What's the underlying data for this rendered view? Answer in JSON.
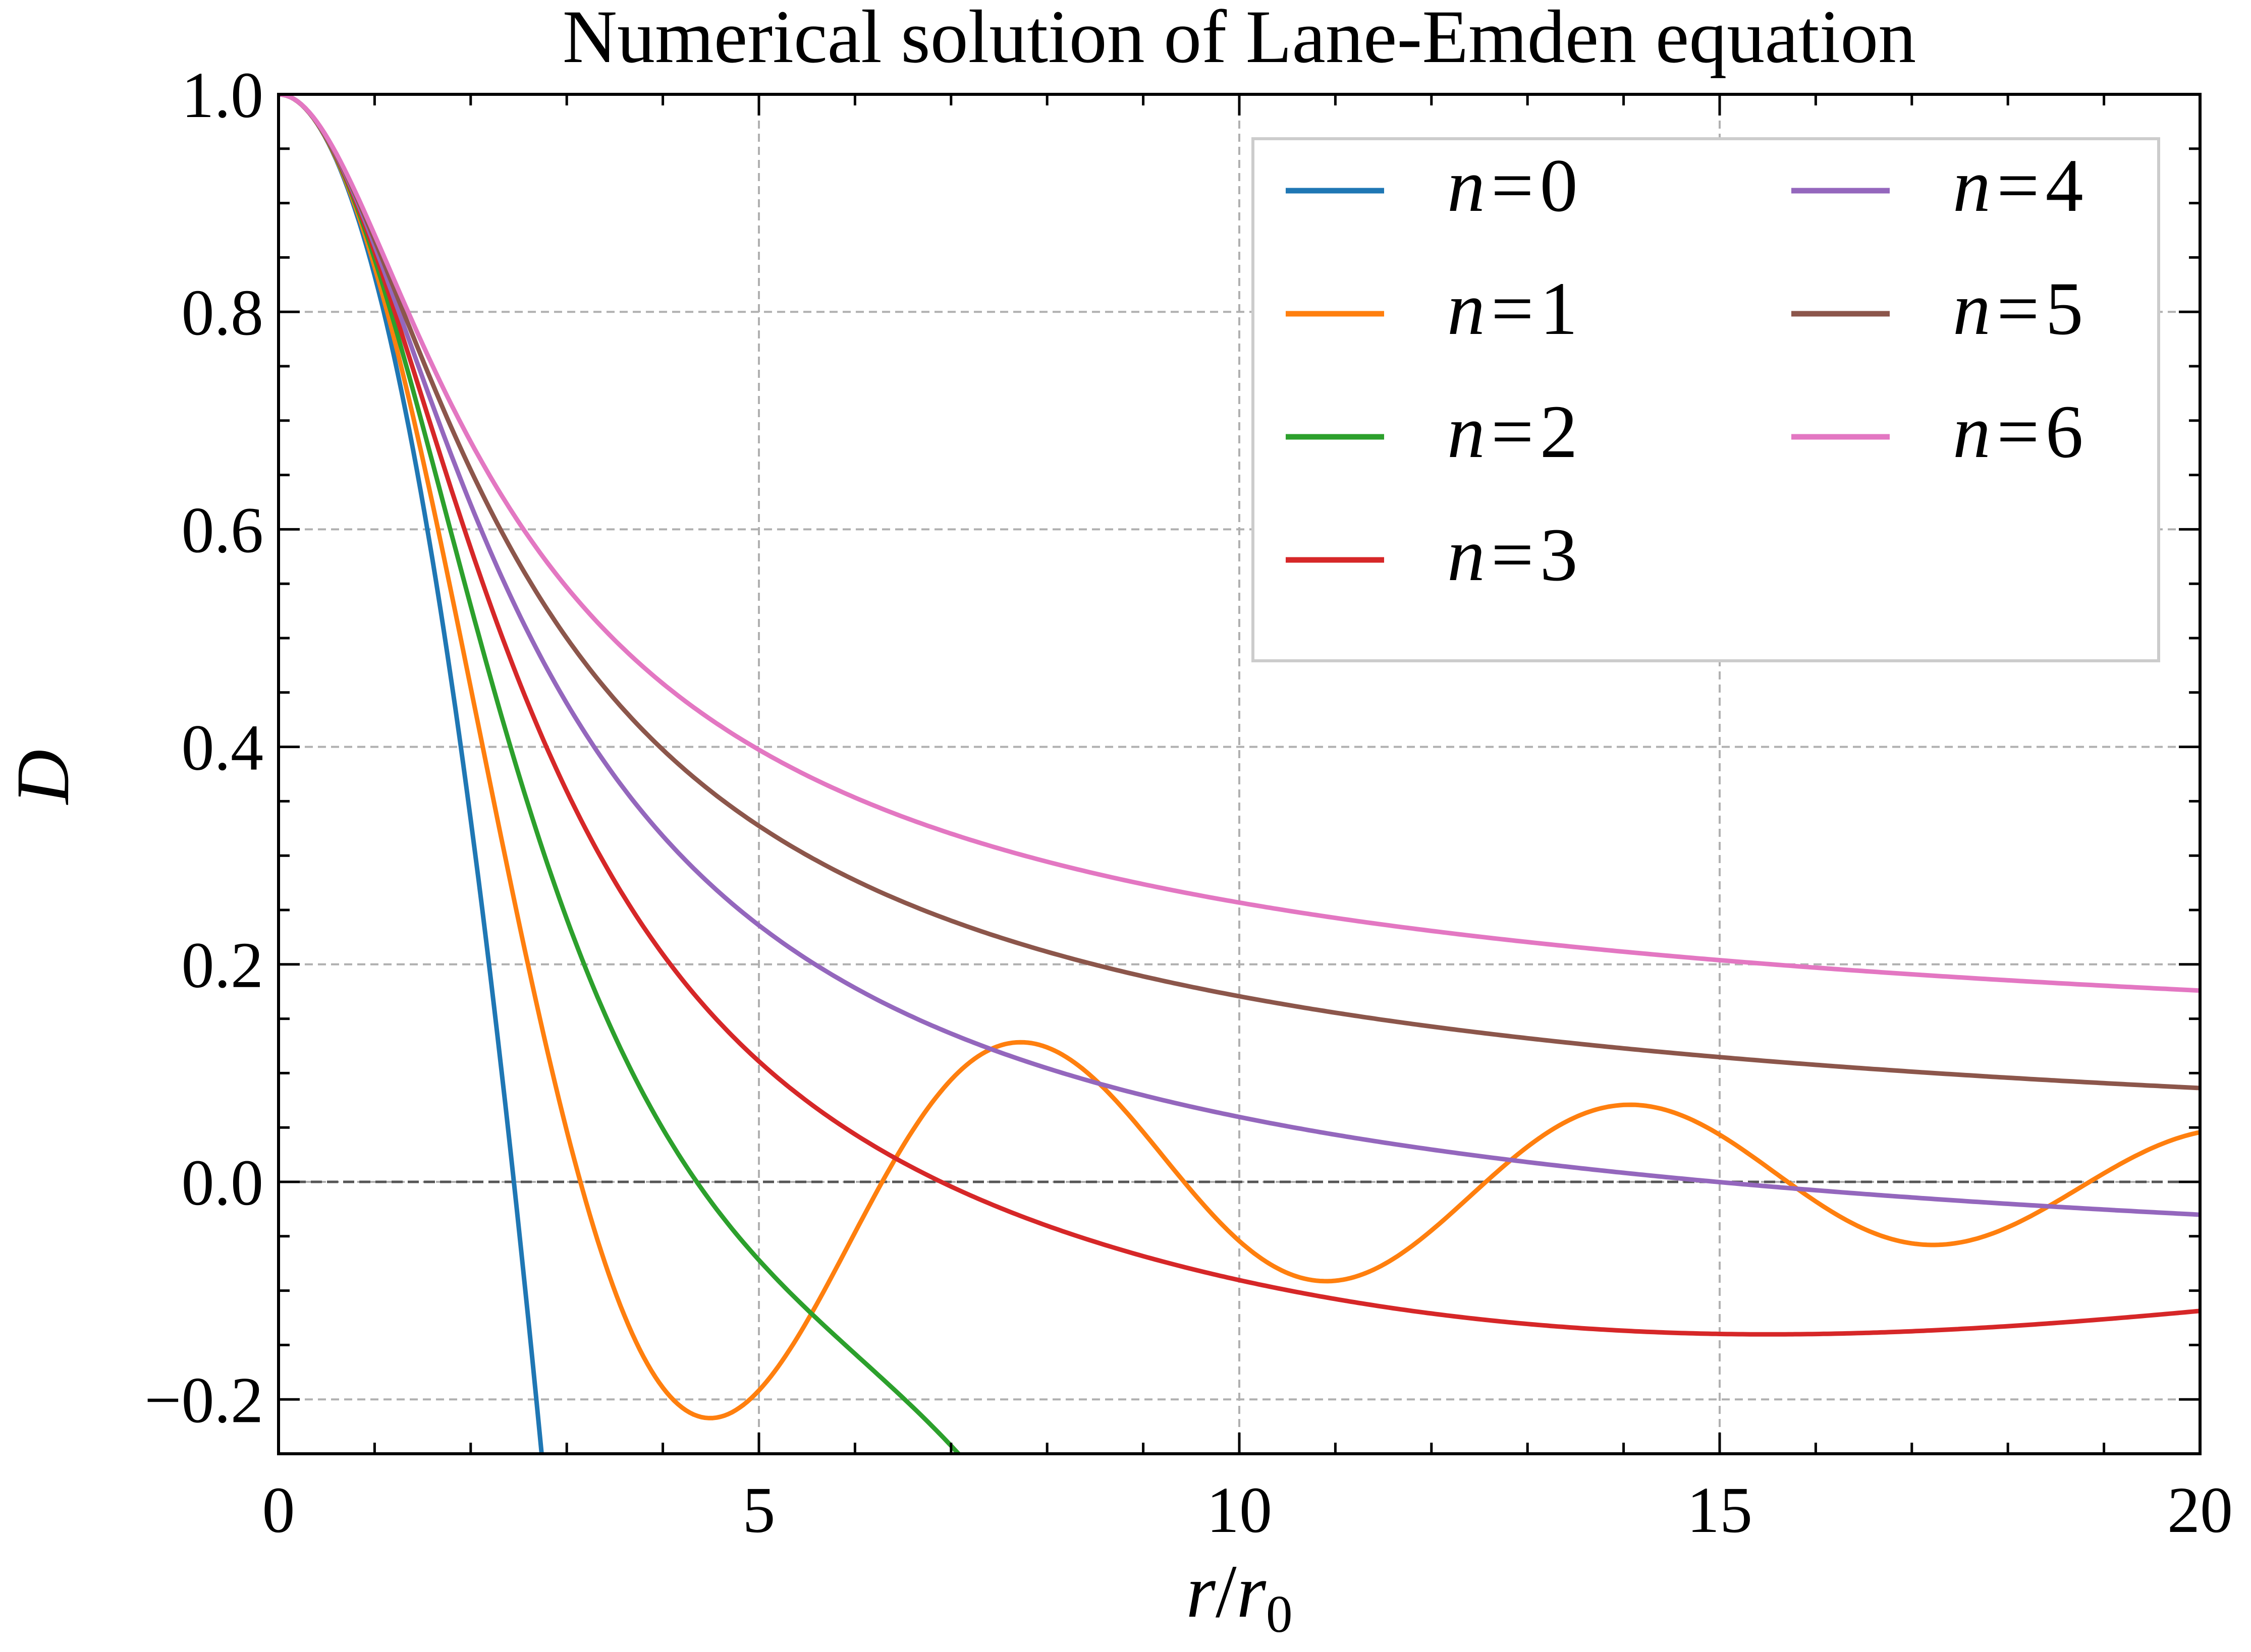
{
  "chart_data": {
    "type": "line",
    "title": "Numerical solution of Lane-Emden equation",
    "xlabel": {
      "var": "r",
      "slash": "/",
      "sub_var": "r",
      "sub_index": "0"
    },
    "ylabel": "D",
    "xlim": [
      0,
      20
    ],
    "ylim": [
      -0.25,
      1.0
    ],
    "xticks": [
      0,
      5,
      10,
      15,
      20
    ],
    "xtick_labels": [
      "0",
      "5",
      "10",
      "15",
      "20"
    ],
    "yticks": [
      -0.2,
      0.0,
      0.2,
      0.4,
      0.6,
      0.8,
      1.0
    ],
    "ytick_labels": [
      "−0.2",
      "0.0",
      "0.2",
      "0.4",
      "0.6",
      "0.8",
      "1.0"
    ],
    "grid": true,
    "legend_position": "top-right",
    "legend_columns": 2,
    "series": [
      {
        "name": "n = 0",
        "var": "n",
        "eq": "=",
        "num": "0",
        "color": "#1f77b4"
      },
      {
        "name": "n = 1",
        "var": "n",
        "eq": "=",
        "num": "1",
        "color": "#ff7f0e"
      },
      {
        "name": "n = 2",
        "var": "n",
        "eq": "=",
        "num": "2",
        "color": "#2ca02c"
      },
      {
        "name": "n = 3",
        "var": "n",
        "eq": "=",
        "num": "3",
        "color": "#d62728"
      },
      {
        "name": "n = 4",
        "var": "n",
        "eq": "=",
        "num": "4",
        "color": "#9467bd"
      },
      {
        "name": "n = 5",
        "var": "n",
        "eq": "=",
        "num": "5",
        "color": "#8c564b"
      },
      {
        "name": "n = 6",
        "var": "n",
        "eq": "=",
        "num": "6",
        "color": "#e377c2"
      }
    ]
  }
}
